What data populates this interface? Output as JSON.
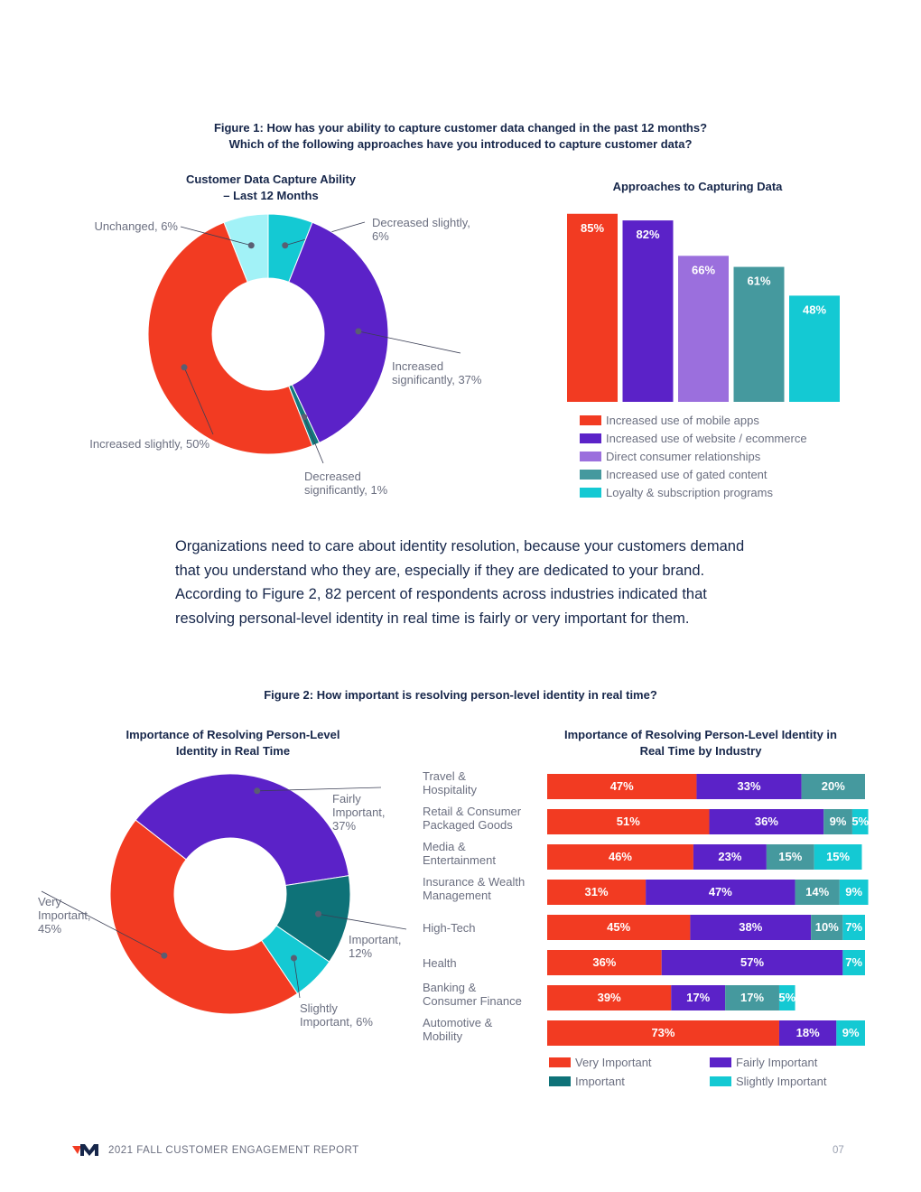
{
  "figure1": {
    "title_line1": "Figure 1: How has your ability to capture customer data changed in the past 12 months?",
    "title_line2": "Which of the following approaches have you introduced to capture customer data?"
  },
  "figure2": {
    "title": "Figure 2: How important is resolving person-level identity in real time?"
  },
  "body_text": "Organizations need to care about identity resolution, because your customers demand that you understand who they are, especially if they are dedicated to your brand. According to Figure 2, 82 percent of respondents across industries indicated that resolving personal-level identity in real time is fairly or very important for them.",
  "footer": {
    "report": "2021 FALL CUSTOMER ENGAGEMENT REPORT",
    "page": "07"
  },
  "chart_data": [
    {
      "type": "pie",
      "title_line1": "Customer Data Capture Ability",
      "title_line2": "– Last 12 Months",
      "slices": [
        {
          "label_lines": [
            "Decreased slightly,",
            "6%"
          ],
          "value": 6,
          "color": "#14c9d3"
        },
        {
          "label_lines": [
            "Increased",
            "significantly, 37%"
          ],
          "value": 37,
          "color": "#5b22c8"
        },
        {
          "label_lines": [
            "Decreased",
            "significantly, 1%"
          ],
          "value": 1,
          "color": "#127a7e"
        },
        {
          "label_lines": [
            "Increased slightly, 50%"
          ],
          "value": 50,
          "color": "#f23b22"
        },
        {
          "label_lines": [
            "Unchanged, 6%"
          ],
          "value": 6,
          "color": "#a2f2f7"
        }
      ]
    },
    {
      "type": "bar",
      "title": "Approaches to Capturing Data",
      "categories": [
        "Increased use of mobile apps",
        "Increased use of website / ecommerce",
        "Direct consumer relationships",
        "Increased use of gated content",
        "Loyalty & subscription programs"
      ],
      "values": [
        85,
        82,
        66,
        61,
        48
      ],
      "value_labels": [
        "85%",
        "82%",
        "66%",
        "61%",
        "48%"
      ],
      "colors": [
        "#f23b22",
        "#5b22c8",
        "#9b6fdd",
        "#45999e",
        "#14c9d3"
      ],
      "ylim": [
        0,
        100
      ]
    },
    {
      "type": "pie",
      "title_line1": "Importance of Resolving Person-Level",
      "title_line2": "Identity in Real Time",
      "slices": [
        {
          "label_lines": [
            "Fairly",
            "Important,",
            "37%"
          ],
          "value": 37,
          "color": "#5b22c8"
        },
        {
          "label_lines": [
            "Important,",
            "12%"
          ],
          "value": 12,
          "color": "#0e7278"
        },
        {
          "label_lines": [
            "Slightly",
            "Important, 6%"
          ],
          "value": 6,
          "color": "#14c9d3"
        },
        {
          "label_lines": [
            "Very",
            "Important,",
            "45%"
          ],
          "value": 45,
          "color": "#f23b22"
        }
      ]
    },
    {
      "type": "bar",
      "orientation": "horizontal",
      "stacked": true,
      "title_line1": "Importance of Resolving Person-Level Identity in",
      "title_line2": "Real Time by Industry",
      "categories": [
        [
          "Travel &",
          "Hospitality"
        ],
        [
          "Retail & Consumer",
          "Packaged Goods"
        ],
        [
          "Media &",
          "Entertainment"
        ],
        [
          "Insurance & Wealth",
          "Management"
        ],
        [
          "High-Tech"
        ],
        [
          "Health"
        ],
        [
          "Banking &",
          "Consumer Finance"
        ],
        [
          "Automotive &",
          "Mobility"
        ]
      ],
      "series": [
        {
          "name": "Very Important",
          "color": "#f23b22",
          "values": [
            47,
            51,
            46,
            31,
            45,
            36,
            39,
            73
          ]
        },
        {
          "name": "Fairly Important",
          "color": "#5b22c8",
          "values": [
            33,
            36,
            23,
            47,
            38,
            57,
            17,
            18
          ]
        },
        {
          "name": "Important",
          "color": "#45999e",
          "values": [
            20,
            9,
            15,
            14,
            10,
            0,
            17,
            0
          ]
        },
        {
          "name": "Slightly Important",
          "color": "#14c9d3",
          "values": [
            0,
            5,
            15,
            9,
            7,
            7,
            5,
            9
          ]
        }
      ],
      "legend": [
        {
          "name": "Very Important",
          "color": "#f23b22"
        },
        {
          "name": "Fairly Important",
          "color": "#5b22c8"
        },
        {
          "name": "Important",
          "color": "#0e7278"
        },
        {
          "name": "Slightly Important",
          "color": "#14c9d3"
        }
      ]
    }
  ]
}
